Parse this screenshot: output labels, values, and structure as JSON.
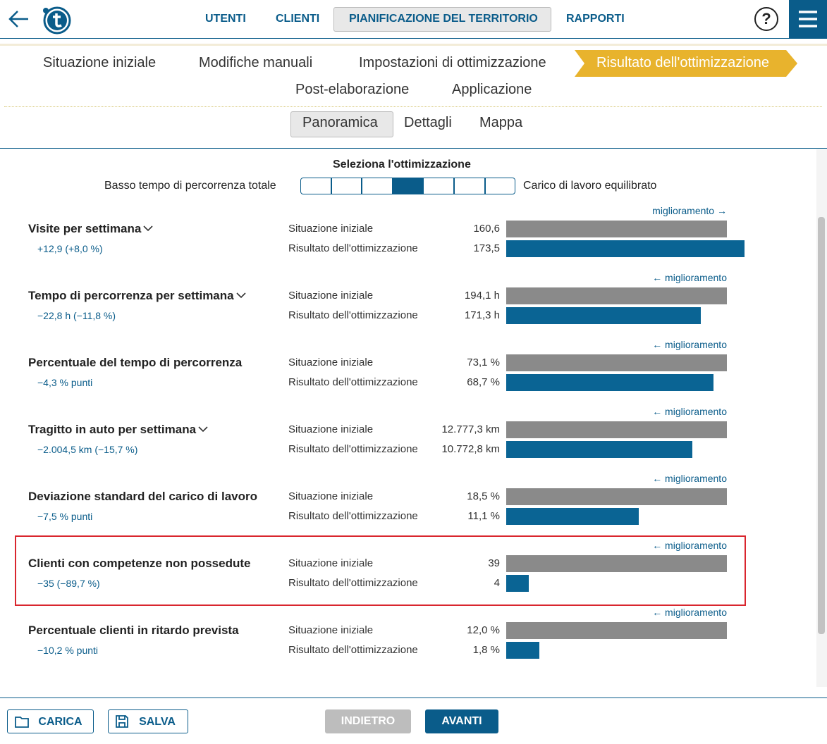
{
  "header": {
    "nav": [
      "UTENTI",
      "CLIENTI",
      "PIANIFICAZIONE DEL TERRITORIO",
      "RAPPORTI"
    ],
    "help": "?"
  },
  "steps": [
    "Situazione iniziale",
    "Modifiche manuali",
    "Impostazioni di ottimizzazione",
    "Risultato dell'ottimizzazione",
    "Post-elaborazione",
    "Applicazione"
  ],
  "subtabs": [
    "Panoramica",
    "Dettagli",
    "Mappa"
  ],
  "selector": {
    "title": "Seleziona l'ottimizzazione",
    "left": "Basso tempo di percorrenza totale",
    "right": "Carico di lavoro equilibrato"
  },
  "row_labels": [
    "Situazione iniziale",
    "Risultato dell'ottimizzazione"
  ],
  "metrics": [
    {
      "title": "Visite per settimana",
      "dropdown": true,
      "delta": "+12,9 (+8,0 %)",
      "direction": "miglioramento →",
      "initial": {
        "value": 160.6,
        "label": "160,6"
      },
      "result": {
        "value": 173.5,
        "label": "173,5"
      }
    },
    {
      "title": "Tempo di percorrenza per settimana",
      "dropdown": true,
      "delta": "−22,8 h (−11,8 %)",
      "direction": "← miglioramento",
      "initial": {
        "value": 194.1,
        "label": "194,1 h"
      },
      "result": {
        "value": 171.3,
        "label": "171,3 h"
      }
    },
    {
      "title": "Percentuale del tempo di percorrenza",
      "dropdown": false,
      "delta": "−4,3 % punti",
      "direction": "← miglioramento",
      "initial": {
        "value": 73.1,
        "label": "73,1 %"
      },
      "result": {
        "value": 68.7,
        "label": "68,7 %"
      }
    },
    {
      "title": "Tragitto in auto per settimana",
      "dropdown": true,
      "delta": "−2.004,5 km (−15,7 %)",
      "direction": "← miglioramento",
      "initial": {
        "value": 12777.3,
        "label": "12.777,3 km"
      },
      "result": {
        "value": 10772.8,
        "label": "10.772,8 km"
      }
    },
    {
      "title": "Deviazione standard del carico di lavoro",
      "dropdown": false,
      "delta": "−7,5 % punti",
      "direction": "← miglioramento",
      "initial": {
        "value": 18.5,
        "label": "18,5 %"
      },
      "result": {
        "value": 11.1,
        "label": "11,1 %"
      }
    },
    {
      "title": "Clienti con competenze non possedute",
      "dropdown": false,
      "delta": "−35 (−89,7 %)",
      "direction": "← miglioramento",
      "initial": {
        "value": 39,
        "label": "39"
      },
      "result": {
        "value": 4,
        "label": "4"
      }
    },
    {
      "title": "Percentuale clienti in ritardo prevista",
      "dropdown": false,
      "delta": "−10,2 % punti",
      "direction": "← miglioramento",
      "initial": {
        "value": 12.0,
        "label": "12,0 %"
      },
      "result": {
        "value": 1.8,
        "label": "1,8 %"
      }
    }
  ],
  "footer": {
    "buttons": [
      "CARICA",
      "SALVA",
      "INDIETRO",
      "AVANTI"
    ]
  }
}
